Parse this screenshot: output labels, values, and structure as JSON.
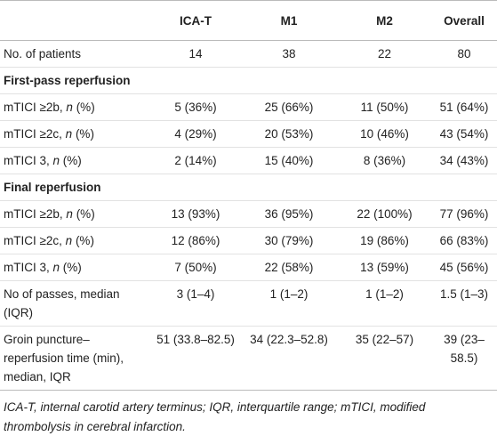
{
  "table": {
    "columns": [
      "ICA-T",
      "M1",
      "M2",
      "Overall"
    ],
    "rows": [
      {
        "label": "No. of patients",
        "values": [
          "14",
          "38",
          "22",
          "80"
        ]
      },
      {
        "section": "First-pass reperfusion"
      },
      {
        "label": "mTICI ≥2b, n (%)",
        "values": [
          "5 (36%)",
          "25 (66%)",
          "11 (50%)",
          "51 (64%)"
        ]
      },
      {
        "label": "mTICI ≥2c, n (%)",
        "values": [
          "4 (29%)",
          "20 (53%)",
          "10 (46%)",
          "43 (54%)"
        ]
      },
      {
        "label": "mTICI 3, n (%)",
        "values": [
          "2 (14%)",
          "15 (40%)",
          "8 (36%)",
          "34 (43%)"
        ]
      },
      {
        "section": "Final reperfusion"
      },
      {
        "label": "mTICI ≥2b, n (%)",
        "values": [
          "13 (93%)",
          "36 (95%)",
          "22 (100%)",
          "77 (96%)"
        ]
      },
      {
        "label": "mTICI ≥2c, n (%)",
        "values": [
          "12 (86%)",
          "30 (79%)",
          "19 (86%)",
          "66 (83%)"
        ]
      },
      {
        "label": "mTICI 3, n (%)",
        "values": [
          "7 (50%)",
          "22 (58%)",
          "13 (59%)",
          "45 (56%)"
        ]
      },
      {
        "label": "No of passes, median (IQR)",
        "values": [
          "3 (1–4)",
          "1 (1–2)",
          "1 (1–2)",
          "1.5 (1–3)"
        ]
      },
      {
        "label": "Groin puncture–reperfusion time (min), median, IQR",
        "values": [
          "51 (33.8–82.5)",
          "34 (22.3–52.8)",
          "35 (22–57)",
          "39 (23–58.5)"
        ]
      }
    ],
    "footnote": "ICA-T, internal carotid artery terminus; IQR, interquartile range; mTICI, modified thrombolysis in cerebral infarction."
  }
}
